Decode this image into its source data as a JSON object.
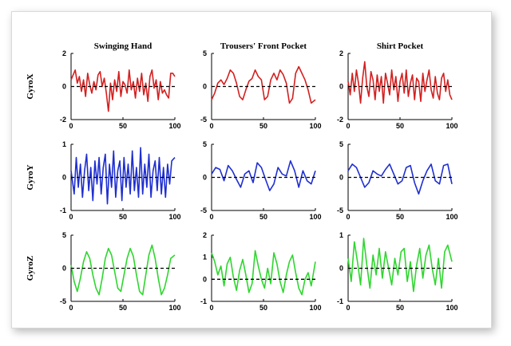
{
  "chart_data": {
    "type": "line",
    "grid": false,
    "columns": [
      "Swinging Hand",
      "Trousers' Front Pocket",
      "Shirt Pocket"
    ],
    "rows": [
      "GyroX",
      "GyroY",
      "GyroZ"
    ],
    "x_ticks": [
      "0",
      "50",
      "100"
    ],
    "xlim": [
      0,
      100
    ],
    "colors": {
      "GyroX": "#d42020",
      "GyroY": "#1f2fd0",
      "GyroZ": "#2fd62f",
      "zero_line": "#000000",
      "frame": "#e0e0e0"
    },
    "panels": [
      {
        "row": "GyroX",
        "column": "Swinging Hand",
        "ylim": [
          -2,
          2
        ],
        "y_ticks": [
          "2",
          "0",
          "-2"
        ],
        "x": [
          0,
          4,
          6,
          8,
          10,
          12,
          14,
          16,
          18,
          20,
          22,
          24,
          26,
          28,
          30,
          32,
          34,
          36,
          38,
          40,
          42,
          44,
          46,
          48,
          50,
          52,
          54,
          56,
          58,
          60,
          62,
          64,
          66,
          68,
          70,
          72,
          74,
          76,
          78,
          80,
          82,
          84,
          86,
          88,
          90,
          92,
          94,
          96,
          98,
          100
        ],
        "y": [
          0.4,
          1.0,
          0.2,
          0.6,
          -0.3,
          0.4,
          -0.6,
          0.8,
          0.1,
          -0.4,
          0.3,
          -0.2,
          0.7,
          0.9,
          0.0,
          0.5,
          -0.4,
          -1.5,
          0.2,
          -0.8,
          0.4,
          -0.3,
          0.9,
          -0.6,
          0.3,
          0.1,
          -0.4,
          1.0,
          -0.2,
          0.3,
          -0.7,
          0.5,
          -0.3,
          0.8,
          -0.5,
          0.2,
          -0.9,
          0.6,
          1.0,
          -0.1,
          0.4,
          -0.8,
          0.3,
          -0.4,
          -0.2,
          -0.5,
          -0.7,
          0.8,
          0.8,
          0.6
        ]
      },
      {
        "row": "GyroX",
        "column": "Trousers' Front Pocket",
        "ylim": [
          -5,
          5
        ],
        "y_ticks": [
          "5",
          "0",
          "-5"
        ],
        "x": [
          0,
          3,
          6,
          9,
          12,
          15,
          18,
          21,
          24,
          27,
          30,
          33,
          36,
          39,
          42,
          45,
          48,
          51,
          54,
          57,
          60,
          63,
          66,
          69,
          72,
          75,
          78,
          81,
          84,
          87,
          90,
          93,
          96,
          100
        ],
        "y": [
          -2.0,
          -1.0,
          0.5,
          1.0,
          0.3,
          1.2,
          2.5,
          2.0,
          0.5,
          -1.5,
          -2.0,
          -0.5,
          0.8,
          1.2,
          2.5,
          1.5,
          1.0,
          -2.0,
          -1.5,
          1.0,
          2.0,
          1.0,
          2.5,
          1.8,
          0.5,
          -2.5,
          -1.8,
          2.0,
          3.0,
          2.0,
          1.0,
          -0.5,
          -2.5,
          -2.0
        ]
      },
      {
        "row": "GyroX",
        "column": "Shirt Pocket",
        "ylim": [
          -2,
          2
        ],
        "y_ticks": [
          "2",
          "0",
          "-2"
        ],
        "x": [
          0,
          2,
          4,
          6,
          8,
          10,
          12,
          14,
          16,
          18,
          20,
          22,
          24,
          26,
          28,
          30,
          32,
          34,
          36,
          38,
          40,
          42,
          44,
          46,
          48,
          50,
          52,
          54,
          56,
          58,
          60,
          62,
          64,
          66,
          68,
          70,
          72,
          74,
          76,
          78,
          80,
          82,
          84,
          86,
          88,
          90,
          92,
          94,
          96,
          98,
          100
        ],
        "y": [
          0.3,
          -0.5,
          0.8,
          -0.3,
          1.0,
          0.2,
          -1.0,
          0.5,
          1.5,
          0.0,
          -0.6,
          0.9,
          0.4,
          -0.8,
          0.7,
          -0.3,
          0.6,
          -1.0,
          0.8,
          0.2,
          -0.5,
          1.0,
          -0.2,
          0.6,
          -0.9,
          0.3,
          0.8,
          -0.4,
          1.0,
          -0.6,
          0.2,
          0.7,
          -0.8,
          0.5,
          0.3,
          -0.9,
          0.8,
          -0.3,
          0.4,
          1.0,
          -0.2,
          -0.7,
          0.6,
          -0.4,
          -0.8,
          0.5,
          0.8,
          -0.3,
          0.4,
          -0.5,
          -0.8
        ]
      },
      {
        "row": "GyroY",
        "column": "Swinging Hand",
        "ylim": [
          -1,
          1
        ],
        "y_ticks": [
          "1",
          "0",
          "-1"
        ],
        "x": [
          0,
          3,
          5,
          7,
          9,
          11,
          13,
          15,
          17,
          19,
          21,
          23,
          25,
          27,
          29,
          31,
          33,
          35,
          37,
          39,
          41,
          43,
          45,
          47,
          49,
          51,
          53,
          55,
          57,
          59,
          61,
          63,
          65,
          67,
          69,
          71,
          73,
          75,
          77,
          79,
          81,
          83,
          85,
          87,
          89,
          91,
          93,
          95,
          97,
          100
        ],
        "y": [
          0.2,
          -0.5,
          0.6,
          -0.3,
          0.4,
          -0.6,
          0.2,
          0.7,
          -0.4,
          0.3,
          -0.7,
          0.5,
          -0.2,
          0.6,
          -0.5,
          0.3,
          0.7,
          -0.8,
          0.4,
          -0.3,
          0.8,
          -0.6,
          0.2,
          0.5,
          -0.7,
          0.6,
          -0.3,
          0.4,
          -0.5,
          0.8,
          -0.4,
          0.3,
          -0.6,
          0.9,
          -0.5,
          0.4,
          -0.3,
          0.7,
          -0.6,
          0.2,
          0.5,
          -0.4,
          0.6,
          -0.5,
          0.3,
          -0.6,
          0.4,
          -0.2,
          0.5,
          0.6
        ]
      },
      {
        "row": "GyroY",
        "column": "Trousers' Front Pocket",
        "ylim": [
          -5,
          5
        ],
        "y_ticks": [
          "5",
          "0",
          "-5"
        ],
        "x": [
          0,
          4,
          8,
          12,
          16,
          20,
          24,
          28,
          32,
          36,
          40,
          44,
          48,
          52,
          56,
          60,
          64,
          68,
          72,
          76,
          80,
          84,
          88,
          92,
          96,
          100
        ],
        "y": [
          0.5,
          1.5,
          1.2,
          -0.5,
          1.8,
          1.0,
          -0.3,
          -1.5,
          0.5,
          1.0,
          -0.8,
          2.2,
          1.5,
          -0.3,
          -2.0,
          -1.0,
          1.5,
          0.5,
          0.2,
          2.5,
          1.0,
          -1.5,
          1.0,
          -0.5,
          -1.0,
          1.0
        ]
      },
      {
        "row": "GyroY",
        "column": "Shirt Pocket",
        "ylim": [
          -5,
          5
        ],
        "y_ticks": [
          "5",
          "0",
          "-5"
        ],
        "x": [
          0,
          4,
          8,
          12,
          16,
          20,
          24,
          28,
          32,
          36,
          40,
          44,
          48,
          52,
          56,
          60,
          64,
          68,
          72,
          76,
          80,
          84,
          88,
          92,
          96,
          100
        ],
        "y": [
          1.0,
          2.0,
          1.5,
          0.0,
          -1.5,
          -0.8,
          1.0,
          0.5,
          0.2,
          1.2,
          2.0,
          0.5,
          -1.0,
          -0.5,
          1.5,
          1.8,
          -0.8,
          -2.5,
          -0.5,
          1.0,
          2.0,
          -0.5,
          -1.0,
          1.8,
          2.0,
          -1.0
        ]
      },
      {
        "row": "GyroZ",
        "column": "Swinging Hand",
        "ylim": [
          -5,
          5
        ],
        "y_ticks": [
          "5",
          "0",
          "-5"
        ],
        "x": [
          0,
          3,
          6,
          9,
          12,
          15,
          18,
          21,
          24,
          27,
          30,
          33,
          36,
          39,
          42,
          45,
          48,
          51,
          54,
          57,
          60,
          63,
          66,
          69,
          72,
          75,
          78,
          81,
          84,
          87,
          90,
          93,
          96,
          100
        ],
        "y": [
          0.5,
          -2.0,
          -3.5,
          -1.5,
          1.0,
          2.5,
          1.5,
          -1.0,
          -3.0,
          -4.0,
          -1.5,
          1.5,
          3.0,
          2.0,
          -0.5,
          -3.0,
          -3.5,
          -1.0,
          1.5,
          3.0,
          1.8,
          -1.0,
          -3.5,
          -4.0,
          -1.0,
          2.0,
          3.5,
          1.5,
          -1.5,
          -4.0,
          -3.0,
          -1.0,
          1.5,
          2.0
        ]
      },
      {
        "row": "GyroZ",
        "column": "Trousers' Front Pocket",
        "ylim": [
          -1,
          2
        ],
        "y_ticks": [
          "2",
          "1",
          "0",
          "-1"
        ],
        "x": [
          0,
          3,
          6,
          9,
          12,
          15,
          18,
          21,
          24,
          27,
          30,
          33,
          36,
          39,
          42,
          45,
          48,
          51,
          54,
          57,
          60,
          63,
          66,
          69,
          72,
          75,
          78,
          81,
          84,
          87,
          90,
          93,
          96,
          100
        ],
        "y": [
          1.2,
          0.8,
          0.2,
          0.6,
          -0.3,
          0.7,
          1.0,
          0.1,
          -0.5,
          0.4,
          0.9,
          0.2,
          -0.6,
          -0.2,
          1.3,
          0.6,
          0.0,
          -0.4,
          0.5,
          -0.2,
          1.2,
          0.7,
          -0.1,
          -0.6,
          0.2,
          0.8,
          1.1,
          0.3,
          -0.4,
          -0.7,
          0.0,
          0.3,
          -0.3,
          0.8
        ]
      },
      {
        "row": "GyroZ",
        "column": "Shirt Pocket",
        "ylim": [
          -1,
          1
        ],
        "y_ticks": [
          "1",
          "0",
          "-1"
        ],
        "x": [
          0,
          3,
          6,
          9,
          12,
          15,
          18,
          21,
          24,
          27,
          30,
          33,
          36,
          39,
          42,
          45,
          48,
          51,
          54,
          57,
          60,
          63,
          66,
          69,
          72,
          75,
          78,
          81,
          84,
          87,
          90,
          93,
          96,
          100
        ],
        "y": [
          0.3,
          -0.4,
          0.8,
          0.2,
          -0.5,
          0.9,
          0.1,
          -0.6,
          0.4,
          -0.2,
          0.6,
          -0.3,
          0.5,
          0.0,
          -0.5,
          0.3,
          -0.2,
          0.5,
          0.6,
          -0.4,
          0.2,
          -0.7,
          0.1,
          0.6,
          -0.3,
          0.4,
          0.7,
          0.0,
          -0.5,
          0.3,
          -0.6,
          0.5,
          0.7,
          0.2
        ]
      }
    ]
  }
}
